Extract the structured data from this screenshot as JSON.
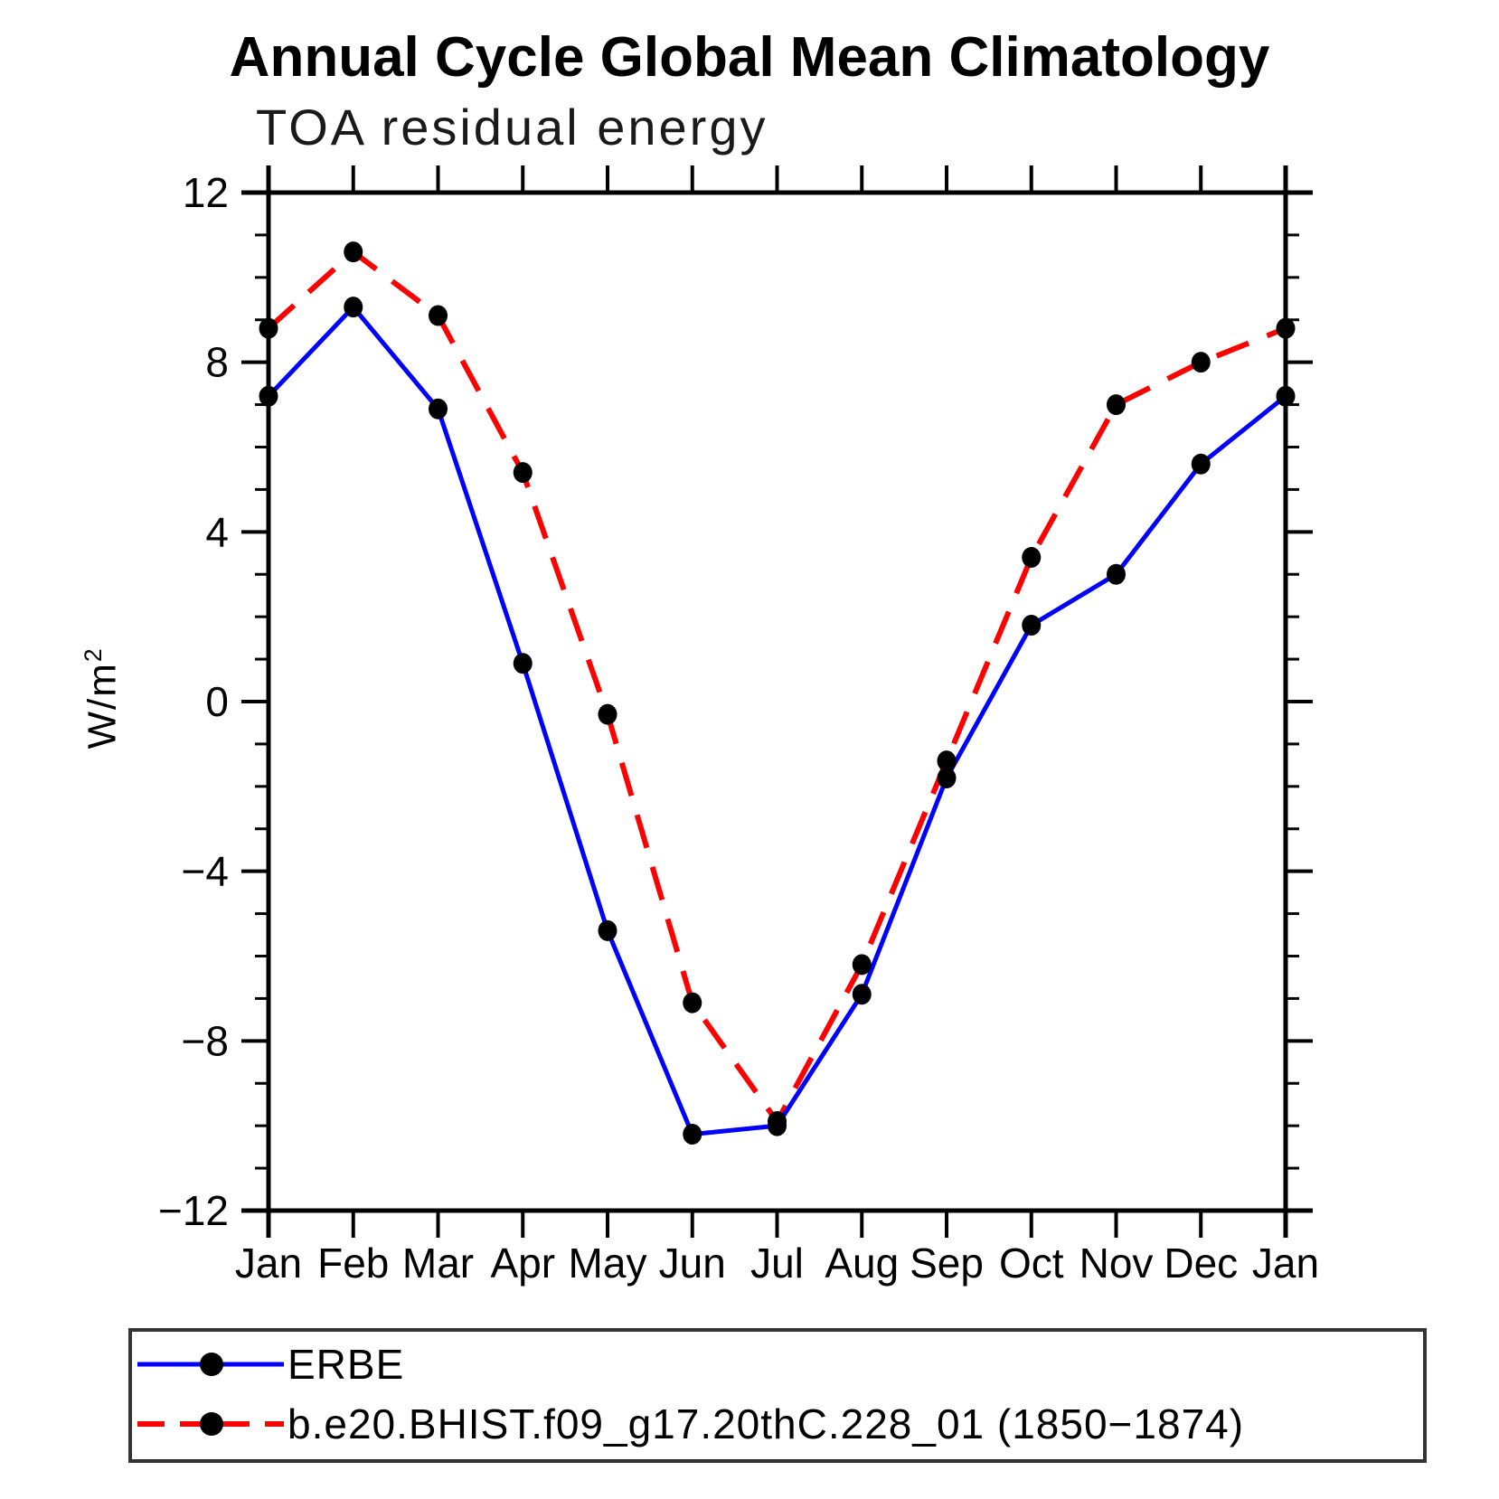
{
  "title": "Annual Cycle Global Mean Climatology",
  "subtitle": "TOA residual energy",
  "y_axis_title": "W/m",
  "y_axis_title_exponent": "2",
  "legend": {
    "entries": [
      {
        "label": "ERBE",
        "color": "#0000ff",
        "style": "solid"
      },
      {
        "label": "b.e20.BHIST.f09_g17.20thC.228_01 (1850−1874)",
        "color": "#ff0000",
        "style": "dashed"
      }
    ]
  },
  "chart_data": {
    "type": "line",
    "title": "Annual Cycle Global Mean Climatology",
    "subtitle": "TOA residual energy",
    "ylabel": "W/m²",
    "categories": [
      "Jan",
      "Feb",
      "Mar",
      "Apr",
      "May",
      "Jun",
      "Jul",
      "Aug",
      "Sep",
      "Oct",
      "Nov",
      "Dec",
      "Jan"
    ],
    "series": [
      {
        "name": "ERBE",
        "color": "#0000ff",
        "style": "solid",
        "values": [
          7.2,
          9.3,
          6.9,
          0.9,
          -5.4,
          -10.2,
          -10.0,
          -6.9,
          -1.8,
          1.8,
          3.0,
          5.6,
          7.2
        ]
      },
      {
        "name": "b.e20.BHIST.f09_g17.20thC.228_01 (1850−1874)",
        "color": "#ff0000",
        "style": "dashed",
        "values": [
          8.8,
          10.6,
          9.1,
          5.4,
          -0.3,
          -7.1,
          -9.9,
          -6.2,
          -1.4,
          3.4,
          7.0,
          8.0,
          8.8
        ]
      }
    ],
    "ylim": [
      -12,
      12
    ],
    "yticks_major": [
      -12,
      -8,
      -4,
      0,
      4,
      8,
      12
    ],
    "ytick_labels": [
      "−12",
      "−8",
      "−4",
      "0",
      "4",
      "8",
      "12"
    ],
    "ytick_minor_step": 1,
    "marker_color": "#000000",
    "grid": false,
    "legend_position": "bottom"
  }
}
